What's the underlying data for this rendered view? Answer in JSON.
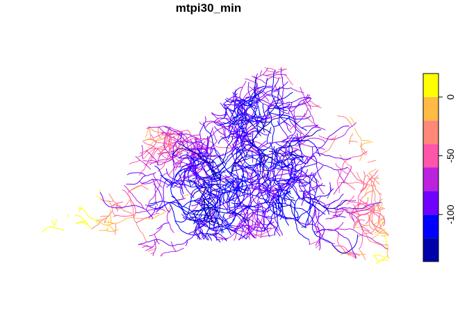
{
  "map": {
    "title": "mtpi30_min"
  },
  "legend": {
    "min": -140,
    "max": 20,
    "bins": [
      {
        "from": -140,
        "to": -120,
        "color": "#0000AA"
      },
      {
        "from": -120,
        "to": -100,
        "color": "#0000FF"
      },
      {
        "from": -100,
        "to": -80,
        "color": "#7000FF"
      },
      {
        "from": -80,
        "to": -60,
        "color": "#BB22DD"
      },
      {
        "from": -60,
        "to": -40,
        "color": "#FF55AA"
      },
      {
        "from": -40,
        "to": -20,
        "color": "#FF8877"
      },
      {
        "from": -20,
        "to": 0,
        "color": "#FFBB44"
      },
      {
        "from": 0,
        "to": 20,
        "color": "#FFFF00"
      }
    ],
    "ticks": [
      {
        "value": 0,
        "label": "0"
      },
      {
        "value": -50,
        "label": "-50"
      },
      {
        "value": -100,
        "label": "-100"
      }
    ]
  }
}
